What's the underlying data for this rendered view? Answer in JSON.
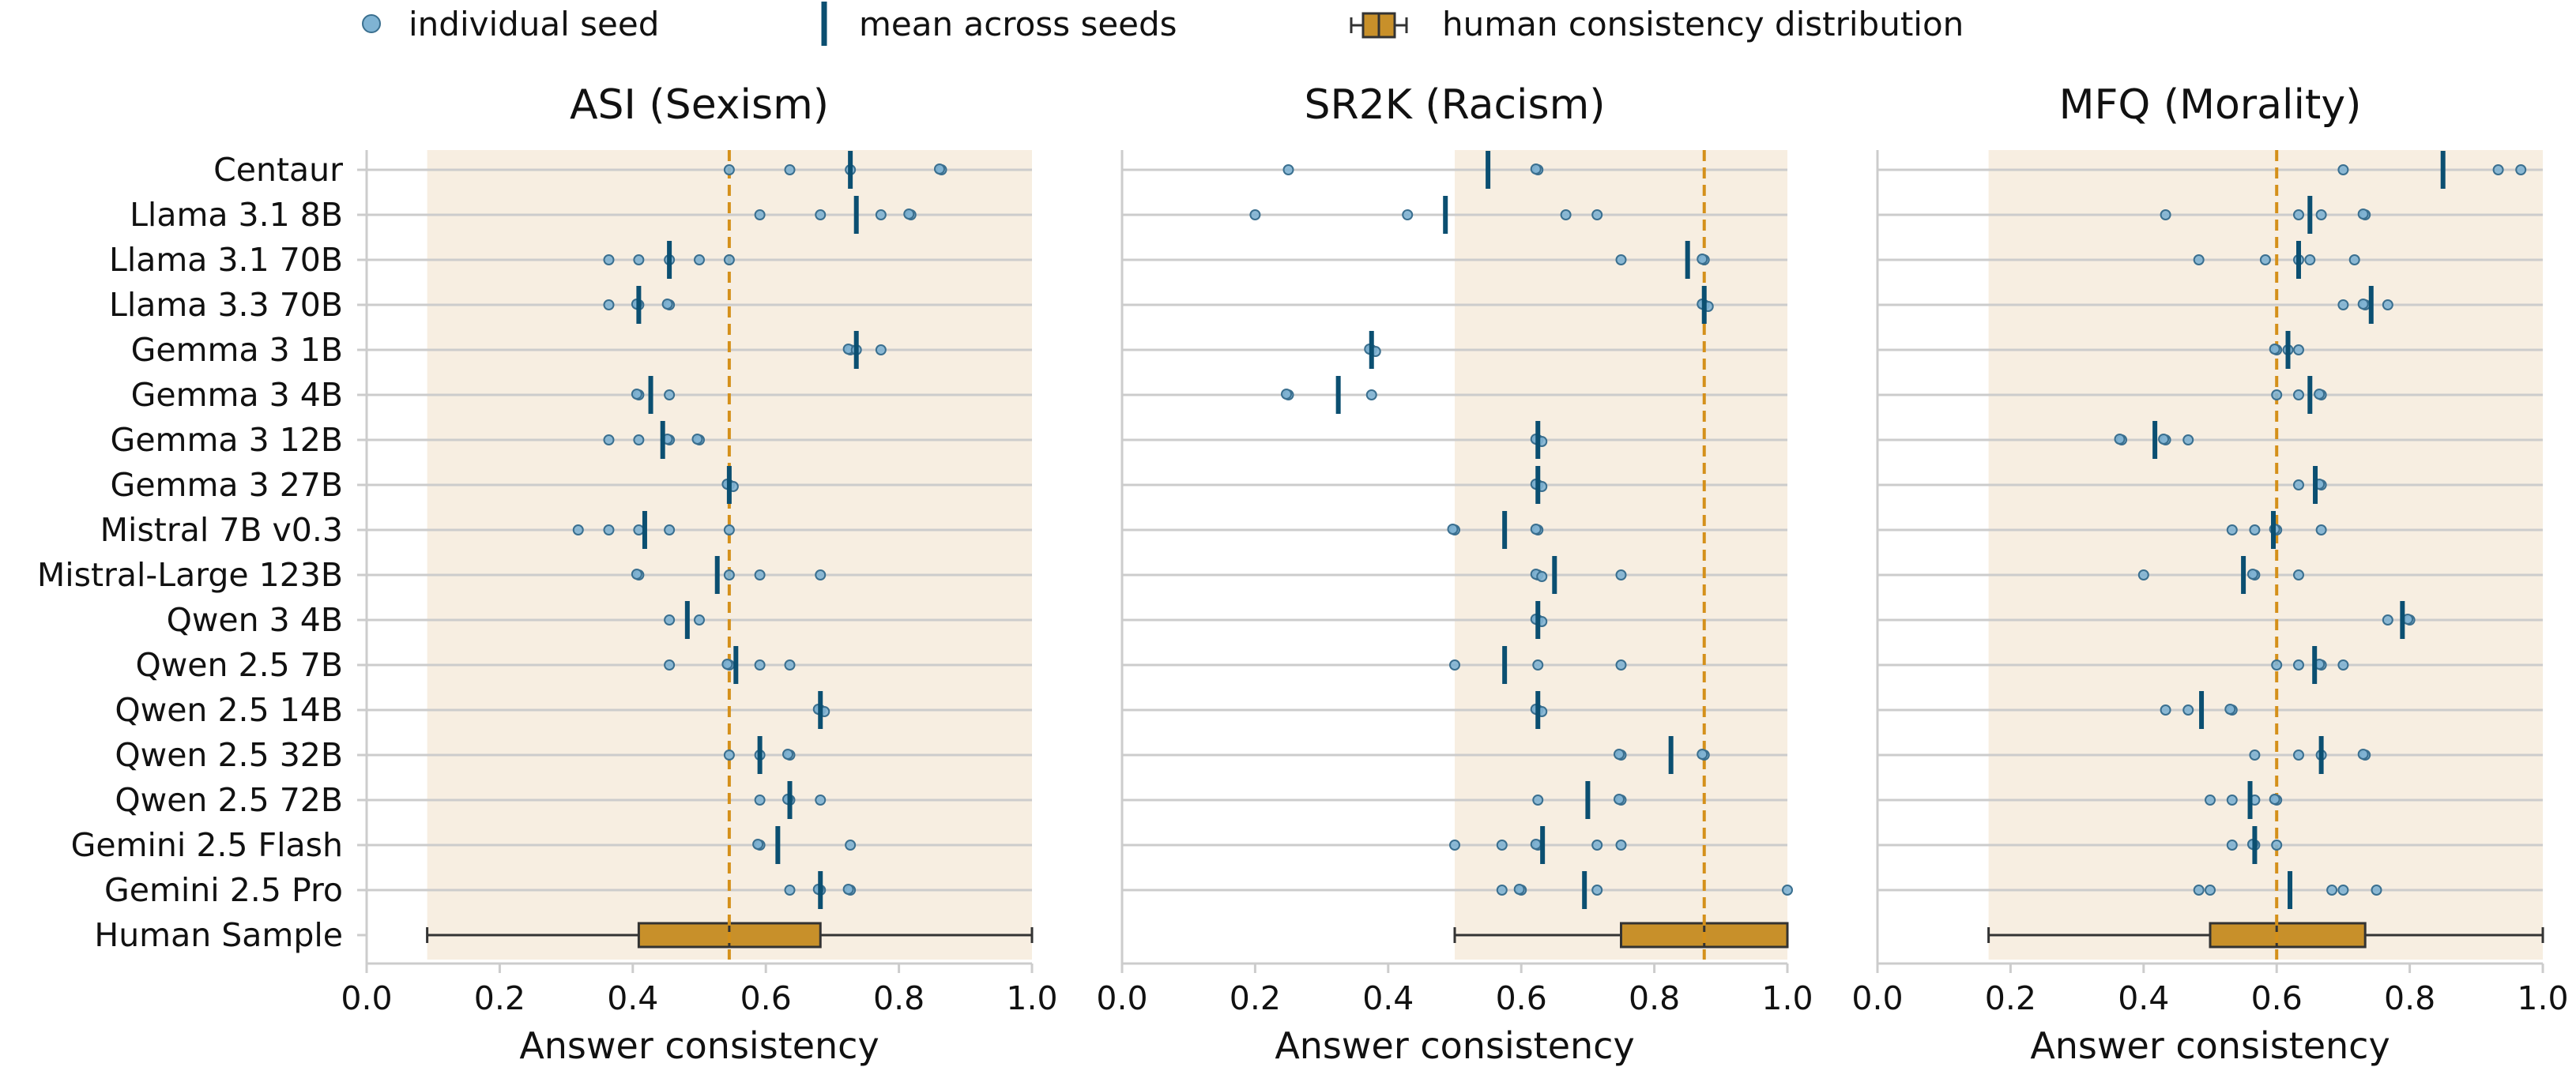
{
  "legend": {
    "seed_label": "individual seed",
    "mean_label": "mean across seeds",
    "human_label": "human consistency distribution"
  },
  "colors": {
    "seed_fill": "#7fb3d3",
    "seed_stroke": "#3a6f8f",
    "mean": "#0b4f71",
    "box": "#c8902a",
    "shade": "#f7eee1",
    "ref_line": "#d4901a",
    "grid": "#cccccc"
  },
  "chart_data": [
    {
      "type": "scatter",
      "title": "ASI (Sexism)",
      "xlabel": "Answer consistency",
      "xlim": [
        0.0,
        1.0
      ],
      "xticks": [
        "0.0",
        "0.2",
        "0.4",
        "0.6",
        "0.8",
        "1.0"
      ],
      "xtick_values": [
        0.0,
        0.2,
        0.4,
        0.6,
        0.8,
        1.0
      ],
      "categories": [
        "Centaur",
        "Llama 3.1 8B",
        "Llama 3.1 70B",
        "Llama 3.3 70B",
        "Gemma 3 1B",
        "Gemma 3 4B",
        "Gemma 3 12B",
        "Gemma 3 27B",
        "Mistral 7B v0.3",
        "Mistral-Large 123B",
        "Qwen 3 4B",
        "Qwen 2.5 7B",
        "Qwen 2.5 14B",
        "Qwen 2.5 32B",
        "Qwen 2.5 72B",
        "Gemini 2.5 Flash",
        "Gemini 2.5 Pro",
        "Human Sample"
      ],
      "models": [
        {
          "seeds": [
            0.545,
            0.636,
            0.727,
            0.864,
            0.864
          ],
          "mean": 0.727
        },
        {
          "seeds": [
            0.591,
            0.682,
            0.773,
            0.818,
            0.818
          ],
          "mean": 0.736
        },
        {
          "seeds": [
            0.364,
            0.409,
            0.455,
            0.5,
            0.545
          ],
          "mean": 0.455
        },
        {
          "seeds": [
            0.364,
            0.409,
            0.409,
            0.455,
            0.455
          ],
          "mean": 0.409
        },
        {
          "seeds": [
            0.727,
            0.727,
            0.736,
            0.773
          ],
          "mean": 0.736
        },
        {
          "seeds": [
            0.409,
            0.409,
            0.455
          ],
          "mean": 0.427
        },
        {
          "seeds": [
            0.364,
            0.409,
            0.455,
            0.455,
            0.5,
            0.5
          ],
          "mean": 0.445
        },
        {
          "seeds": [
            0.545,
            0.545,
            0.545
          ],
          "mean": 0.545
        },
        {
          "seeds": [
            0.318,
            0.364,
            0.409,
            0.455,
            0.545
          ],
          "mean": 0.418
        },
        {
          "seeds": [
            0.409,
            0.409,
            0.545,
            0.591,
            0.682
          ],
          "mean": 0.527
        },
        {
          "seeds": [
            0.455,
            0.5
          ],
          "mean": 0.482
        },
        {
          "seeds": [
            0.455,
            0.545,
            0.545,
            0.591,
            0.636
          ],
          "mean": 0.555
        },
        {
          "seeds": [
            0.682,
            0.682,
            0.682
          ],
          "mean": 0.682
        },
        {
          "seeds": [
            0.545,
            0.591,
            0.636,
            0.636
          ],
          "mean": 0.591
        },
        {
          "seeds": [
            0.591,
            0.636,
            0.636,
            0.682
          ],
          "mean": 0.636
        },
        {
          "seeds": [
            0.591,
            0.591,
            0.727
          ],
          "mean": 0.618
        },
        {
          "seeds": [
            0.636,
            0.682,
            0.682,
            0.727,
            0.727
          ],
          "mean": 0.682
        }
      ],
      "human": {
        "min": 0.091,
        "q1": 0.409,
        "median": 0.545,
        "q3": 0.682,
        "max": 1.0
      },
      "shade_range": [
        0.091,
        1.0
      ],
      "ref_line": 0.545
    },
    {
      "type": "scatter",
      "title": "SR2K (Racism)",
      "xlabel": "Answer consistency",
      "xlim": [
        0.0,
        1.0
      ],
      "xticks": [
        "0.0",
        "0.2",
        "0.4",
        "0.6",
        "0.8",
        "1.0"
      ],
      "xtick_values": [
        0.0,
        0.2,
        0.4,
        0.6,
        0.8,
        1.0
      ],
      "categories": [],
      "models": [
        {
          "seeds": [
            0.25,
            0.625,
            0.625
          ],
          "mean": 0.55
        },
        {
          "seeds": [
            0.2,
            0.429,
            0.667,
            0.714
          ],
          "mean": 0.486
        },
        {
          "seeds": [
            0.75,
            0.875,
            0.875
          ],
          "mean": 0.85
        },
        {
          "seeds": [
            0.875,
            0.875,
            0.875
          ],
          "mean": 0.875
        },
        {
          "seeds": [
            0.375,
            0.375,
            0.375
          ],
          "mean": 0.375
        },
        {
          "seeds": [
            0.25,
            0.25,
            0.375
          ],
          "mean": 0.325
        },
        {
          "seeds": [
            0.625,
            0.625,
            0.625
          ],
          "mean": 0.625
        },
        {
          "seeds": [
            0.625,
            0.625,
            0.625
          ],
          "mean": 0.625
        },
        {
          "seeds": [
            0.5,
            0.5,
            0.625,
            0.625
          ],
          "mean": 0.575
        },
        {
          "seeds": [
            0.625,
            0.625,
            0.625,
            0.75
          ],
          "mean": 0.65
        },
        {
          "seeds": [
            0.625,
            0.625,
            0.625
          ],
          "mean": 0.625
        },
        {
          "seeds": [
            0.5,
            0.625,
            0.75
          ],
          "mean": 0.575
        },
        {
          "seeds": [
            0.625,
            0.625,
            0.625
          ],
          "mean": 0.625
        },
        {
          "seeds": [
            0.75,
            0.75,
            0.875,
            0.875
          ],
          "mean": 0.825
        },
        {
          "seeds": [
            0.625,
            0.75,
            0.75
          ],
          "mean": 0.7
        },
        {
          "seeds": [
            0.5,
            0.571,
            0.625,
            0.625,
            0.714,
            0.75
          ],
          "mean": 0.632
        },
        {
          "seeds": [
            0.571,
            0.6,
            0.6,
            0.714,
            1.0
          ],
          "mean": 0.695
        }
      ],
      "human": {
        "min": 0.5,
        "q1": 0.75,
        "median": 0.875,
        "q3": 1.0,
        "max": 1.0
      },
      "shade_range": [
        0.5,
        1.0
      ],
      "ref_line": 0.875
    },
    {
      "type": "scatter",
      "title": "MFQ (Morality)",
      "xlabel": "Answer consistency",
      "xlim": [
        0.0,
        1.0
      ],
      "xticks": [
        "0.0",
        "0.2",
        "0.4",
        "0.6",
        "0.8",
        "1.0"
      ],
      "xtick_values": [
        0.0,
        0.2,
        0.4,
        0.6,
        0.8,
        1.0
      ],
      "categories": [],
      "models": [
        {
          "seeds": [
            0.7,
            0.933,
            0.967
          ],
          "mean": 0.85
        },
        {
          "seeds": [
            0.433,
            0.633,
            0.667,
            0.733,
            0.733
          ],
          "mean": 0.65
        },
        {
          "seeds": [
            0.483,
            0.583,
            0.633,
            0.65,
            0.717
          ],
          "mean": 0.633
        },
        {
          "seeds": [
            0.7,
            0.733,
            0.733,
            0.767
          ],
          "mean": 0.742
        },
        {
          "seeds": [
            0.6,
            0.6,
            0.617,
            0.633
          ],
          "mean": 0.617
        },
        {
          "seeds": [
            0.6,
            0.633,
            0.667,
            0.667
          ],
          "mean": 0.65
        },
        {
          "seeds": [
            0.367,
            0.367,
            0.433,
            0.433,
            0.467
          ],
          "mean": 0.417
        },
        {
          "seeds": [
            0.633,
            0.667,
            0.667
          ],
          "mean": 0.658
        },
        {
          "seeds": [
            0.533,
            0.567,
            0.6,
            0.6,
            0.667
          ],
          "mean": 0.595
        },
        {
          "seeds": [
            0.4,
            0.567,
            0.567,
            0.633
          ],
          "mean": 0.55
        },
        {
          "seeds": [
            0.767,
            0.8,
            0.8
          ],
          "mean": 0.789
        },
        {
          "seeds": [
            0.6,
            0.633,
            0.667,
            0.667,
            0.7
          ],
          "mean": 0.657
        },
        {
          "seeds": [
            0.433,
            0.467,
            0.533,
            0.533
          ],
          "mean": 0.487
        },
        {
          "seeds": [
            0.567,
            0.633,
            0.667,
            0.733,
            0.733
          ],
          "mean": 0.667
        },
        {
          "seeds": [
            0.5,
            0.533,
            0.567,
            0.6,
            0.6
          ],
          "mean": 0.56
        },
        {
          "seeds": [
            0.533,
            0.567,
            0.567,
            0.6
          ],
          "mean": 0.567
        },
        {
          "seeds": [
            0.483,
            0.5,
            0.683,
            0.7,
            0.75
          ],
          "mean": 0.62
        }
      ],
      "human": {
        "min": 0.167,
        "q1": 0.5,
        "median": 0.6,
        "q3": 0.733,
        "max": 1.0
      },
      "shade_range": [
        0.167,
        1.0
      ],
      "ref_line": 0.6
    }
  ]
}
